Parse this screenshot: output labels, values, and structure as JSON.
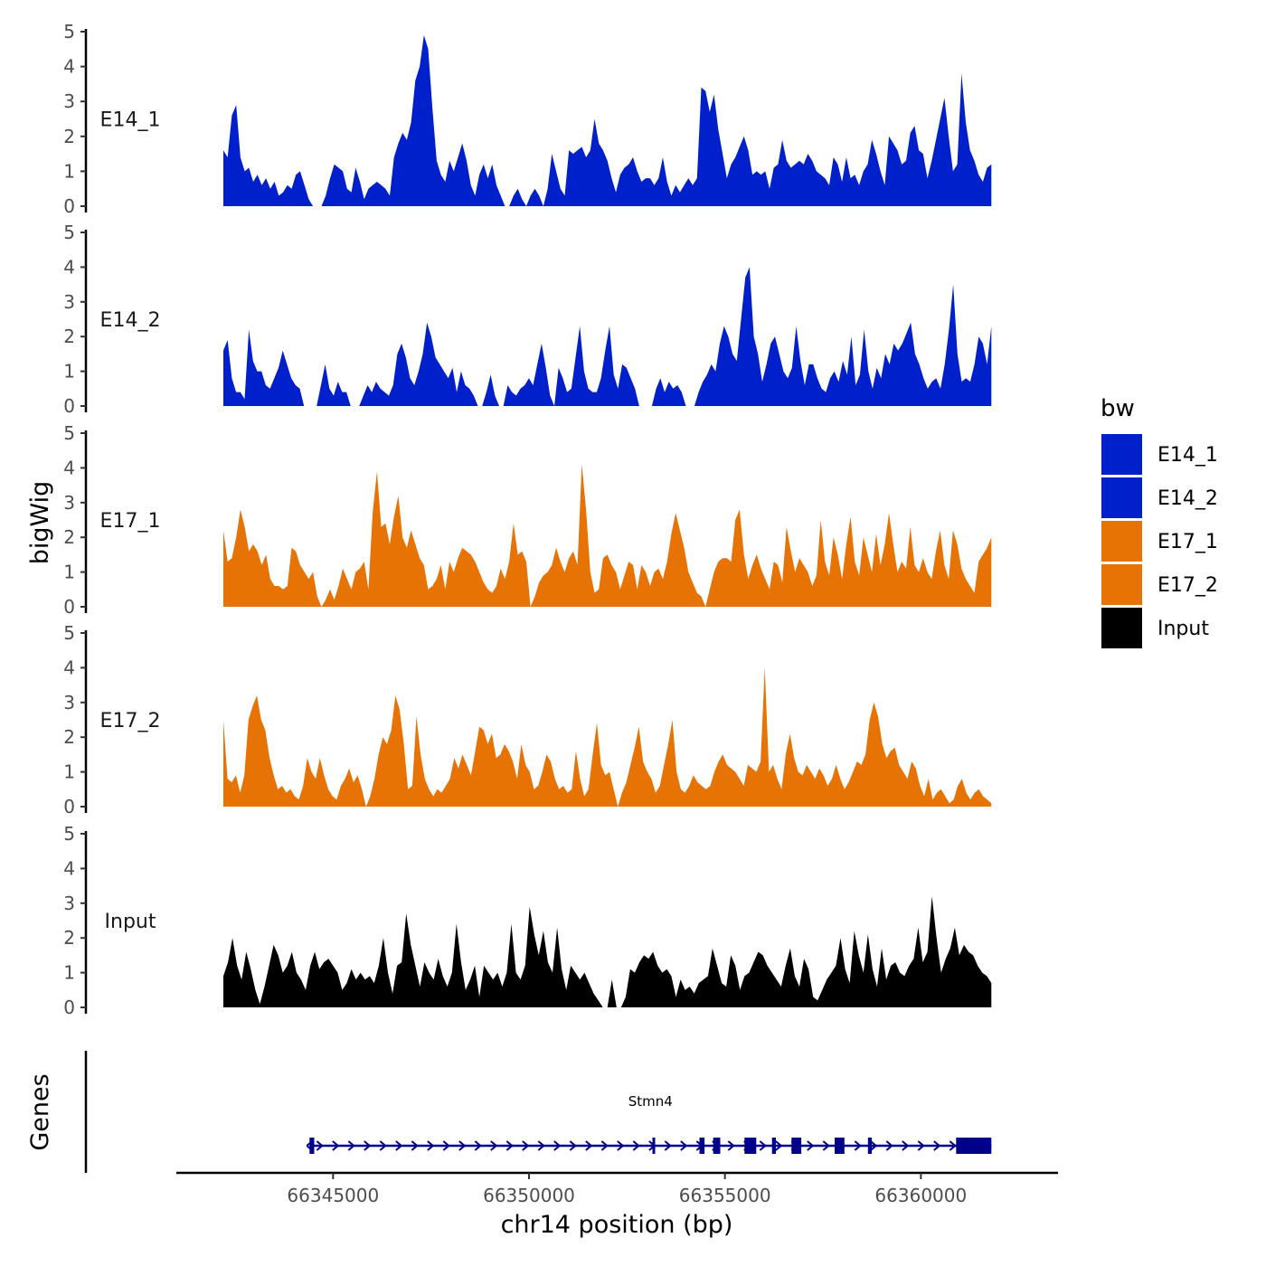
{
  "chart_data": {
    "type": "area",
    "xlabel": "chr14 position (bp)",
    "ylabel": "bigWig",
    "xlim": [
      66341000,
      66363500
    ],
    "x_range": [
      66342200,
      66361800
    ],
    "x_ticks": [
      66345000,
      66350000,
      66355000,
      66360000
    ],
    "x_tick_labels": [
      "66345000",
      "66350000",
      "66355000",
      "66360000"
    ],
    "ylim": [
      0,
      5
    ],
    "y_ticks": [
      0,
      1,
      2,
      3,
      4,
      5
    ],
    "y_tick_labels": [
      "0",
      "1",
      "2",
      "3",
      "4",
      "5"
    ],
    "legend": {
      "title": "bw",
      "entries": [
        {
          "name": "E14_1",
          "color": "#0020CC"
        },
        {
          "name": "E14_2",
          "color": "#0020CC"
        },
        {
          "name": "E17_1",
          "color": "#E87305"
        },
        {
          "name": "E17_2",
          "color": "#E87305"
        },
        {
          "name": "Input",
          "color": "#000000"
        }
      ]
    },
    "series": [
      {
        "name": "E14_1",
        "color": "#0020CC",
        "values": [
          1.6,
          1.4,
          2.6,
          2.9,
          1.4,
          1.0,
          1.1,
          0.7,
          0.9,
          0.6,
          0.8,
          0.5,
          0.7,
          0.3,
          0.4,
          0.6,
          0.5,
          0.9,
          1.0,
          0.6,
          0.2,
          0,
          0,
          0,
          0.3,
          0.8,
          1.2,
          1.1,
          1.0,
          0.5,
          0.4,
          1.1,
          0.7,
          0.2,
          0.5,
          0.6,
          0.7,
          0.6,
          0.5,
          0.3,
          1.4,
          1.8,
          2.1,
          1.9,
          2.4,
          3.6,
          4.0,
          4.9,
          4.5,
          2.8,
          1.3,
          0.9,
          0.7,
          1.3,
          1.0,
          1.4,
          1.8,
          1.3,
          0.6,
          0.3,
          0.9,
          1.2,
          0.8,
          1.2,
          0.6,
          0.3,
          0,
          0,
          0.3,
          0.5,
          0.2,
          0,
          0.3,
          0.5,
          0.3,
          0,
          0.5,
          1.5,
          1.0,
          0.5,
          0.3,
          1.6,
          1.5,
          1.6,
          1.7,
          1.4,
          1.6,
          2.5,
          1.8,
          1.6,
          1.3,
          0.8,
          0.4,
          0.9,
          1.1,
          1.2,
          1.4,
          1.0,
          0.7,
          0.8,
          0.8,
          0.6,
          0.8,
          1.4,
          0.7,
          0.3,
          0.6,
          0.4,
          0.6,
          0.8,
          0.6,
          0.8,
          3.4,
          3.3,
          2.7,
          3.2,
          2.2,
          1.5,
          0.8,
          1.2,
          1.4,
          1.7,
          2.0,
          1.6,
          0.9,
          1.0,
          0.9,
          1.0,
          0.5,
          1.1,
          1.2,
          1.9,
          1.3,
          1.1,
          1.2,
          1.3,
          1.2,
          1.5,
          1.3,
          1.0,
          0.9,
          0.8,
          0.6,
          1.4,
          1.2,
          0.7,
          1.4,
          0.8,
          0.9,
          0.6,
          1.0,
          1.2,
          1.9,
          1.5,
          1.0,
          0.6,
          2.0,
          1.8,
          1.6,
          1.2,
          1.3,
          2.1,
          2.3,
          1.6,
          1.5,
          0.8,
          1.3,
          1.9,
          2.5,
          3.1,
          2.0,
          1.0,
          1.2,
          3.8,
          2.4,
          1.6,
          1.3,
          0.9,
          0.7,
          1.1,
          1.2
        ]
      },
      {
        "name": "E14_2",
        "color": "#0020CC",
        "values": [
          1.6,
          1.9,
          0.8,
          0.4,
          0.4,
          0.2,
          2.2,
          1.3,
          1.0,
          1.0,
          0.6,
          0.5,
          0.8,
          1.1,
          1.6,
          1.2,
          0.8,
          0.6,
          0.5,
          0,
          0,
          0,
          0,
          0.6,
          1.2,
          0.5,
          0.3,
          0.7,
          0.4,
          0.4,
          0,
          0,
          0,
          0.3,
          0.6,
          0.4,
          0.7,
          0.5,
          0.4,
          0.3,
          0.6,
          1.5,
          1.8,
          1.4,
          0.8,
          0.6,
          1.0,
          1.5,
          2.4,
          2.0,
          1.4,
          1.2,
          1.0,
          0.8,
          1.1,
          0.4,
          1.0,
          0.6,
          0.5,
          0.3,
          0,
          0,
          0.4,
          0.9,
          0.3,
          0,
          0,
          0.6,
          0.4,
          0.3,
          0.5,
          0.6,
          0.8,
          0.6,
          1.2,
          1.8,
          1.1,
          0.3,
          0,
          1.1,
          0.8,
          0.4,
          0.5,
          1.4,
          2.3,
          1.0,
          0.5,
          0.4,
          0.4,
          0.8,
          1.6,
          2.3,
          0.9,
          0.5,
          1.2,
          1.1,
          0.8,
          0.5,
          0,
          0,
          0,
          0,
          0.5,
          0.8,
          0.4,
          0.7,
          0.5,
          0.6,
          0.4,
          0,
          0,
          0,
          0.4,
          0.7,
          0.9,
          1.2,
          1.0,
          1.8,
          2.3,
          2.0,
          1.5,
          1.3,
          2.5,
          3.7,
          4.0,
          2.0,
          1.5,
          0.7,
          1.2,
          1.8,
          2.0,
          1.5,
          1.0,
          0.8,
          1.1,
          2.3,
          1.3,
          0.6,
          1.2,
          1.2,
          0.8,
          0.5,
          0.4,
          0.8,
          1.0,
          0.7,
          1.3,
          0.9,
          2.0,
          0.6,
          0.9,
          2.2,
          1.0,
          0.5,
          1.1,
          0.8,
          1.5,
          1.2,
          1.8,
          1.6,
          1.8,
          2.1,
          2.4,
          1.5,
          1.2,
          0.8,
          0.5,
          0.7,
          0.8,
          0.5,
          1.2,
          2.2,
          3.5,
          1.5,
          0.7,
          0.8,
          0.7,
          1.2,
          2.0,
          1.8,
          1.2,
          2.3
        ]
      },
      {
        "name": "E17_1",
        "color": "#E87305",
        "values": [
          2.2,
          1.3,
          1.4,
          2.0,
          2.8,
          2.3,
          1.6,
          1.8,
          1.6,
          1.2,
          1.5,
          0.8,
          0.6,
          0.6,
          0.5,
          0.6,
          1.7,
          1.6,
          1.2,
          1.0,
          0.8,
          1.0,
          0.3,
          0,
          0.2,
          0.5,
          0.2,
          0.6,
          1.1,
          0.8,
          0.5,
          1.0,
          1.1,
          1.3,
          0.5,
          2.7,
          3.9,
          2.3,
          2.4,
          1.8,
          2.6,
          3.2,
          2.0,
          1.7,
          2.2,
          1.8,
          1.4,
          1.2,
          0.5,
          0.6,
          0.8,
          1.2,
          0.5,
          1.3,
          1.0,
          1.4,
          1.7,
          1.6,
          1.5,
          1.3,
          1.0,
          0.7,
          0.5,
          0.4,
          0.6,
          1.1,
          0.8,
          1.3,
          2.4,
          1.5,
          1.6,
          1.3,
          0,
          0.3,
          0.7,
          0.9,
          1.0,
          1.2,
          1.7,
          1.3,
          1.0,
          1.4,
          1.6,
          1.2,
          4.1,
          2.8,
          1.0,
          0.4,
          0.5,
          1.4,
          1.5,
          1.2,
          1.0,
          0.5,
          0.9,
          1.3,
          1.2,
          0.5,
          1.2,
          1.0,
          0.6,
          1.0,
          1.1,
          0.8,
          1.3,
          2.1,
          2.7,
          2.2,
          1.7,
          1.0,
          0.7,
          0.4,
          0.3,
          0,
          0.5,
          1.0,
          1.3,
          1.4,
          1.4,
          1.3,
          2.5,
          2.8,
          1.5,
          0.8,
          1.2,
          1.5,
          1.1,
          0.8,
          0.5,
          1.3,
          1.2,
          0.7,
          2.3,
          1.6,
          1.0,
          1.4,
          1.2,
          1.0,
          0.6,
          0.9,
          2.5,
          1.3,
          0.9,
          2.0,
          1.5,
          0.8,
          1.8,
          2.6,
          1.3,
          0.9,
          2.0,
          1.5,
          1.0,
          2.1,
          1.2,
          1.8,
          2.7,
          1.8,
          1.0,
          1.3,
          1.1,
          2.3,
          1.2,
          1.0,
          1.4,
          1.0,
          0.8,
          1.6,
          2.2,
          1.2,
          0.8,
          2.2,
          1.8,
          1.1,
          0.8,
          0.6,
          0.4,
          1.3,
          1.5,
          1.7,
          2.0
        ]
      },
      {
        "name": "E17_2",
        "color": "#E87305",
        "values": [
          2.5,
          0.8,
          0.7,
          0.9,
          0.4,
          0.9,
          2.5,
          2.9,
          3.2,
          2.5,
          2.2,
          1.4,
          0.9,
          0.5,
          0.6,
          0.4,
          0.5,
          0.3,
          0.2,
          0.6,
          1.4,
          1.0,
          0.8,
          1.4,
          0.9,
          0.5,
          0.3,
          0.2,
          0.6,
          0.8,
          1.1,
          0.7,
          0.9,
          0.5,
          0,
          0.3,
          0.8,
          1.5,
          2.0,
          1.8,
          2.2,
          3.2,
          2.8,
          1.8,
          0.5,
          0.6,
          2.6,
          1.5,
          0.8,
          0.5,
          0.3,
          0.5,
          0.4,
          0.6,
          0.8,
          1.4,
          1.1,
          1.5,
          1.2,
          0.9,
          1.6,
          2.3,
          2.2,
          1.8,
          2.1,
          1.4,
          1.5,
          1.8,
          1.6,
          1.3,
          0.8,
          1.8,
          1.2,
          1.0,
          0.5,
          0.6,
          1.0,
          1.5,
          1.3,
          0.8,
          0.5,
          0.6,
          0.4,
          0.5,
          1.6,
          0.8,
          0.3,
          0.5,
          1.5,
          2.4,
          1.2,
          0.9,
          1.0,
          0.5,
          0,
          0.4,
          0.7,
          1.2,
          1.7,
          2.3,
          1.3,
          1.0,
          0.8,
          0.4,
          0.6,
          1.2,
          1.8,
          2.5,
          1.0,
          0.5,
          0.4,
          0.6,
          0.9,
          0.7,
          0.6,
          0.5,
          0.6,
          1.0,
          1.3,
          1.5,
          1.2,
          1.1,
          1.0,
          0.8,
          0.6,
          1.2,
          1.1,
          1.0,
          1.3,
          4.0,
          1.0,
          1.2,
          0.8,
          0.5,
          1.5,
          2.1,
          1.4,
          1.0,
          0.9,
          1.2,
          1.0,
          0.8,
          1.1,
          0.9,
          0.6,
          0.8,
          1.2,
          0.8,
          0.5,
          0.7,
          1.0,
          1.3,
          1.2,
          1.5,
          2.5,
          3.0,
          2.6,
          1.8,
          1.4,
          1.6,
          1.7,
          1.2,
          1.0,
          0.8,
          1.3,
          1.1,
          0.6,
          0.3,
          0.8,
          0.2,
          0.4,
          0.5,
          0.3,
          0.1,
          0.2,
          0.6,
          0.8,
          0.4,
          0.2,
          0.4,
          0.5,
          0.3,
          0.2,
          0.1
        ]
      },
      {
        "name": "Input",
        "color": "#000000",
        "values": [
          0.9,
          1.3,
          2.0,
          1.2,
          0.8,
          1.6,
          1.1,
          0.5,
          0.1,
          0.6,
          1.2,
          1.8,
          1.5,
          1.0,
          1.2,
          1.6,
          1.0,
          0.8,
          0.5,
          1.2,
          1.6,
          1.1,
          1.3,
          1.4,
          1.2,
          1.0,
          0.5,
          0.7,
          1.1,
          0.8,
          1.0,
          0.8,
          0.9,
          0.7,
          1.2,
          2.0,
          1.0,
          0.4,
          1.2,
          1.3,
          2.7,
          1.8,
          1.2,
          0.6,
          1.3,
          1.0,
          0.8,
          1.4,
          0.9,
          0.6,
          1.0,
          2.4,
          1.3,
          0.5,
          0.8,
          1.2,
          0.3,
          1.2,
          1.0,
          0.8,
          1.0,
          0.6,
          1.0,
          2.4,
          1.0,
          0.8,
          1.2,
          2.9,
          2.1,
          1.5,
          2.2,
          1.3,
          1.0,
          2.3,
          1.1,
          0.5,
          1.2,
          1.0,
          0.8,
          1.0,
          0.7,
          0.4,
          0.2,
          0,
          0,
          0.8,
          0,
          0,
          0.3,
          1.1,
          1.0,
          1.3,
          1.5,
          1.4,
          1.6,
          1.2,
          1.0,
          1.1,
          0.9,
          0.3,
          0.8,
          0.5,
          0.6,
          0.4,
          0.7,
          0.8,
          0.9,
          1.7,
          1.2,
          0.7,
          0.6,
          1.5,
          1.2,
          0.5,
          0.9,
          1.0,
          1.3,
          1.6,
          1.5,
          1.2,
          1.0,
          0.8,
          0.6,
          1.2,
          1.7,
          0.9,
          0.6,
          1.4,
          1.1,
          0.3,
          0.2,
          0.5,
          0.8,
          1.0,
          1.2,
          2.0,
          1.1,
          0.7,
          2.2,
          1.5,
          1.0,
          2.1,
          1.1,
          0.6,
          1.7,
          0.8,
          1.2,
          1.3,
          1.0,
          0.9,
          1.2,
          1.4,
          2.3,
          1.3,
          1.6,
          3.2,
          2.0,
          1.0,
          1.4,
          1.7,
          2.3,
          1.5,
          1.8,
          1.6,
          1.5,
          1.2,
          1.0,
          0.9,
          0.7
        ]
      }
    ],
    "gene_track": {
      "label": "Genes",
      "gene_name": "Stmn4",
      "color": "#00008B",
      "start": 66344400,
      "end": 66361800,
      "strand": "+",
      "exons": [
        [
          66344400,
          66344520
        ],
        [
          66353150,
          66353200
        ],
        [
          66354350,
          66354480
        ],
        [
          66354700,
          66354880
        ],
        [
          66355500,
          66355800
        ],
        [
          66356200,
          66356300
        ],
        [
          66356700,
          66356950
        ],
        [
          66357800,
          66358050
        ],
        [
          66358650,
          66358750
        ],
        [
          66360900,
          66361800
        ]
      ]
    }
  }
}
